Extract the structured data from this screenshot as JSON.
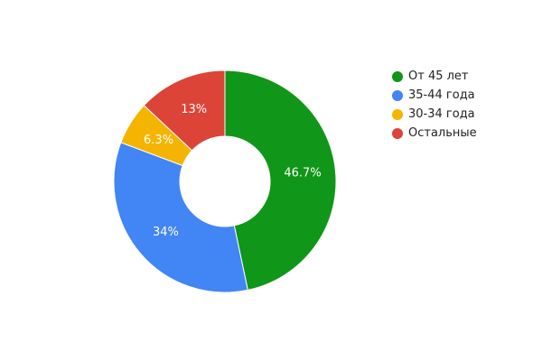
{
  "chart_data": {
    "type": "pie",
    "variant": "donut",
    "legend_position": "right",
    "slices": [
      {
        "label": "От 45 лет",
        "value": 46.7,
        "display": "46.7%",
        "color": "#109618"
      },
      {
        "label": "35-44 года",
        "value": 34,
        "display": "34%",
        "color": "#4285f4"
      },
      {
        "label": "30-34 года",
        "value": 6.3,
        "display": "6.3%",
        "color": "#f4b400"
      },
      {
        "label": "Остальные",
        "value": 13,
        "display": "13%",
        "color": "#db4437"
      }
    ]
  }
}
